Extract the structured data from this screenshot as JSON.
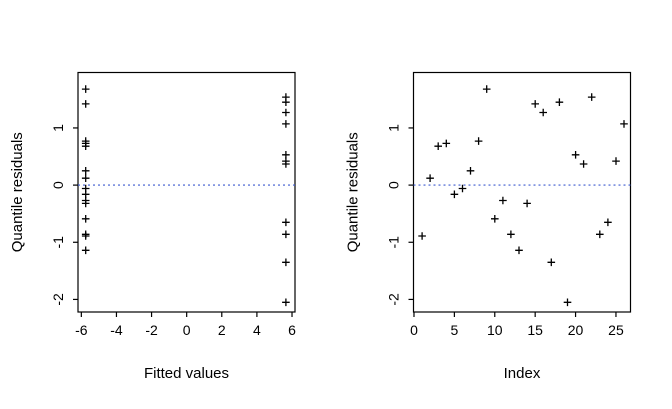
{
  "figure": {
    "background": "#ffffff",
    "axis_color": "#000000",
    "marker_color": "#000000",
    "ref_line_color": "#3b59cf"
  },
  "chart_data": [
    {
      "type": "scatter",
      "panel": "left",
      "title": "",
      "xlabel": "Fitted values",
      "ylabel": "Quantile residuals",
      "marker": "+",
      "legend": "none",
      "grid": false,
      "xlim": [
        -6.19,
        6.17
      ],
      "ylim": [
        -2.22,
        1.97
      ],
      "xticks": [
        -6,
        -4,
        -2,
        0,
        2,
        4,
        6
      ],
      "yticks": [
        -2,
        -1,
        0,
        1
      ],
      "ref_line_y": 0,
      "x": [
        -5.75,
        -5.75,
        -5.75,
        -5.75,
        -5.75,
        -5.75,
        -5.75,
        -5.75,
        -5.75,
        -5.75,
        -5.75,
        -5.75,
        -5.75,
        -5.75,
        -5.75,
        5.65,
        5.65,
        5.65,
        5.65,
        5.65,
        5.65,
        5.65,
        5.65,
        5.65,
        5.65,
        5.65
      ],
      "y": [
        -0.89,
        0.12,
        0.68,
        0.73,
        -0.16,
        -0.06,
        0.25,
        0.77,
        1.68,
        -0.59,
        -0.27,
        -0.86,
        -1.14,
        -0.32,
        1.42,
        1.27,
        -1.35,
        1.45,
        -2.05,
        0.53,
        0.37,
        1.54,
        -0.86,
        -0.65,
        0.42,
        1.07
      ]
    },
    {
      "type": "scatter",
      "panel": "right",
      "title": "",
      "xlabel": "Index",
      "ylabel": "Quantile residuals",
      "marker": "+",
      "legend": "none",
      "grid": false,
      "xlim": [
        -0.06,
        26.8
      ],
      "ylim": [
        -2.22,
        1.97
      ],
      "xticks": [
        0,
        5,
        10,
        15,
        20,
        25
      ],
      "yticks": [
        -2,
        -1,
        0,
        1
      ],
      "ref_line_y": 0,
      "x": [
        1,
        2,
        3,
        4,
        5,
        6,
        7,
        8,
        9,
        10,
        11,
        12,
        13,
        14,
        15,
        16,
        17,
        18,
        19,
        20,
        21,
        22,
        23,
        24,
        25,
        26
      ],
      "y": [
        -0.89,
        0.12,
        0.68,
        0.73,
        -0.16,
        -0.06,
        0.25,
        0.77,
        1.68,
        -0.59,
        -0.27,
        -0.86,
        -1.14,
        -0.32,
        1.42,
        1.27,
        -1.35,
        1.45,
        -2.05,
        0.53,
        0.37,
        1.54,
        -0.86,
        -0.65,
        0.42,
        1.07
      ]
    }
  ]
}
